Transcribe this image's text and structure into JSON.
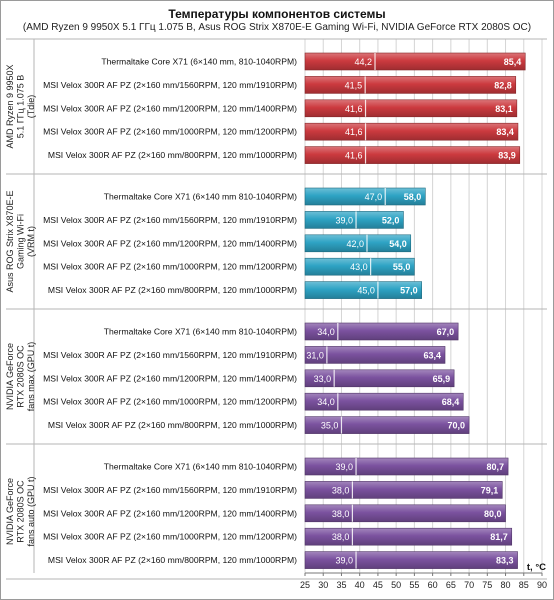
{
  "title": "Температуры компонентов системы",
  "subtitle": "(AMD Ryzen 9 9950X 5.1 ГГц 1.075 В, Asus ROG Strix X870E-E Gaming Wi-Fi, NVIDIA GeForce RTX 2080S OC)",
  "chart_data": {
    "type": "bar",
    "orientation": "horizontal",
    "stacked": true,
    "x_unit": "t, °C",
    "xlim": [
      25,
      90
    ],
    "x_ticks": [
      25,
      30,
      35,
      40,
      45,
      50,
      55,
      60,
      65,
      70,
      75,
      80,
      85,
      90
    ],
    "grid": true,
    "groups": [
      {
        "label": [
          "AMD Ryzen 9 9950X",
          "5.1 ГГц 1.075 В",
          "(Tdie)"
        ],
        "color": "#cc3a3f",
        "rows": [
          {
            "label": "Thermaltake Core X71 (6×140 mm, 810-1040RPM)",
            "min": 44.2,
            "max": 85.4,
            "min_label": "44,2",
            "max_label": "85,4"
          },
          {
            "label": "MSI Velox 300R AF PZ (2×160 mm/1560RPM, 120 mm/1910RPM)",
            "min": 41.5,
            "max": 82.8,
            "min_label": "41,5",
            "max_label": "82,8"
          },
          {
            "label": "MSI Velox 300R AF PZ (2×160 mm/1200RPM, 120 mm/1400RPM)",
            "min": 41.6,
            "max": 83.1,
            "min_label": "41,6",
            "max_label": "83,1"
          },
          {
            "label": "MSI Velox 300R AF PZ (2×160 mm/1000RPM, 120 mm/1200RPM)",
            "min": 41.6,
            "max": 83.4,
            "min_label": "41,6",
            "max_label": "83,4"
          },
          {
            "label": "MSI Velox 300R AF PZ (2×160 mm/800RPM, 120 mm/1000RPM)",
            "min": 41.6,
            "max": 83.9,
            "min_label": "41,6",
            "max_label": "83,9"
          }
        ]
      },
      {
        "label": [
          "Asus ROG Strix X870E-E",
          "Gaming Wi-Fi",
          "(VRM t)"
        ],
        "color": "#2ea3c4",
        "rows": [
          {
            "label": "Thermaltake Core X71 (6×140 mm 810-1040RPM)",
            "min": 47.0,
            "max": 58.0,
            "min_label": "47,0",
            "max_label": "58,0"
          },
          {
            "label": "MSI Velox 300R AF PZ (2×160 mm/1560RPM, 120 mm/1910RPM)",
            "min": 39.0,
            "max": 52.0,
            "min_label": "39,0",
            "max_label": "52,0"
          },
          {
            "label": "MSI Velox 300R AF PZ (2×160 mm/1200RPM, 120 mm/1400RPM)",
            "min": 42.0,
            "max": 54.0,
            "min_label": "42,0",
            "max_label": "54,0"
          },
          {
            "label": "MSI Velox 300R AF PZ (2×160 mm/1000RPM, 120 mm/1200RPM)",
            "min": 43.0,
            "max": 55.0,
            "min_label": "43,0",
            "max_label": "55,0"
          },
          {
            "label": "MSI Velox 300R AF PZ (2×160 mm/800RPM, 120 mm/1000RPM)",
            "min": 45.0,
            "max": 57.0,
            "min_label": "45,0",
            "max_label": "57,0"
          }
        ]
      },
      {
        "label": [
          "NVIDIA GeForce",
          "RTX 2080S OC",
          "fans max (GPU t)"
        ],
        "color": "#7b529f",
        "rows": [
          {
            "label": "Thermaltake Core X71 (6×140 mm 810-1040RPM)",
            "min": 34.0,
            "max": 67.0,
            "min_label": "34,0",
            "max_label": "67,0"
          },
          {
            "label": "MSI Velox 300R AF PZ (2×160 mm/1560RPM, 120 mm/1910RPM)",
            "min": 31.0,
            "max": 63.4,
            "min_label": "31,0",
            "max_label": "63,4"
          },
          {
            "label": "MSI Velox 300R AF PZ (2×160 mm/1200RPM, 120 mm/1400RPM)",
            "min": 33.0,
            "max": 65.9,
            "min_label": "33,0",
            "max_label": "65,9"
          },
          {
            "label": "MSI Velox 300R AF PZ (2×160 mm/1000RPM, 120 mm/1200RPM)",
            "min": 34.0,
            "max": 68.4,
            "min_label": "34,0",
            "max_label": "68,4"
          },
          {
            "label": "MSI Velox 300R AF PZ (2×160 mm/800RPM, 120 mm/1000RPM)",
            "min": 35.0,
            "max": 70.0,
            "min_label": "35,0",
            "max_label": "70,0"
          }
        ]
      },
      {
        "label": [
          "NVIDIA GeForce",
          "RTX 2080S OC",
          "fans auto (GPU t)"
        ],
        "color": "#7b529f",
        "rows": [
          {
            "label": "Thermaltake Core X71 (6×140 mm 810-1040RPM)",
            "min": 39.0,
            "max": 80.7,
            "min_label": "39,0",
            "max_label": "80,7"
          },
          {
            "label": "MSI Velox 300R AF PZ (2×160 mm/1560RPM, 120 mm/1910RPM)",
            "min": 38.0,
            "max": 79.1,
            "min_label": "38,0",
            "max_label": "79,1"
          },
          {
            "label": "MSI Velox 300R AF PZ (2×160 mm/1200RPM, 120 mm/1400RPM)",
            "min": 38.0,
            "max": 80.0,
            "min_label": "38,0",
            "max_label": "80,0"
          },
          {
            "label": "MSI Velox 300R AF PZ (2×160 mm/1000RPM, 120 mm/1200RPM)",
            "min": 38.0,
            "max": 81.7,
            "min_label": "38,0",
            "max_label": "81,7"
          },
          {
            "label": "MSI Velox 300R AF PZ (2×160 mm/800RPM, 120 mm/1000RPM)",
            "min": 39.0,
            "max": 83.3,
            "min_label": "39,0",
            "max_label": "83,3"
          }
        ]
      }
    ]
  }
}
